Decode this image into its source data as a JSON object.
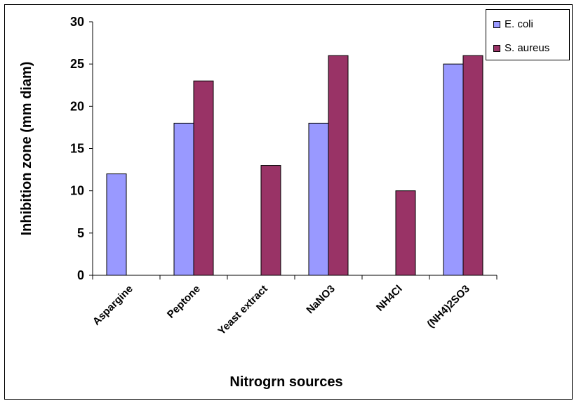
{
  "chart_data": {
    "type": "bar",
    "categories": [
      "Aspargine",
      "Peptone",
      "Yeast extract",
      "NaNO3",
      "NH4Cl",
      "(NH4)2SO3"
    ],
    "series": [
      {
        "name": "E. coli",
        "color": "#9999ff",
        "values": [
          12,
          18,
          null,
          18,
          null,
          25
        ]
      },
      {
        "name": "S. aureus",
        "color": "#993366",
        "values": [
          null,
          23,
          13,
          26,
          10,
          26
        ]
      }
    ],
    "title": "",
    "xlabel": "Nitrogrn sources",
    "ylabel": "Inhibition zone  (mm  diam)",
    "ylim": [
      0,
      30
    ],
    "yticks": [
      0,
      5,
      10,
      15,
      20,
      25,
      30
    ],
    "grid": false,
    "legend_position": "top-right"
  }
}
